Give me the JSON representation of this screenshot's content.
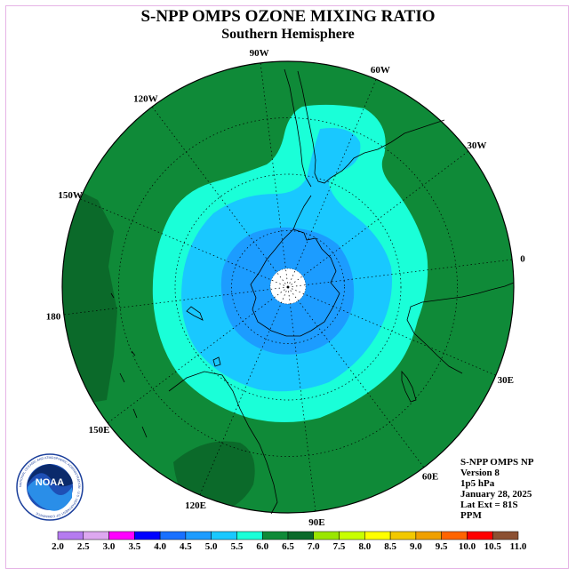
{
  "header": {
    "title": "S-NPP OMPS OZONE MIXING RATIO",
    "subtitle": "Southern Hemisphere"
  },
  "map": {
    "projection": "south polar stereographic",
    "longitude_labels": [
      "90W",
      "60W",
      "30W",
      "0",
      "30E",
      "60E",
      "90E",
      "120E",
      "150E",
      "180",
      "150W",
      "120W"
    ],
    "field_colors": {
      "outer": "#0f8a38",
      "dark": "#0b6a2a",
      "ring1": "#1affd8",
      "ring2": "#19c8ff",
      "ring3": "#1c9cff",
      "pole": "#ffffff"
    }
  },
  "info": {
    "lines": [
      "S-NPP OMPS NP",
      "Version 8",
      "1p5 hPa",
      "January 28, 2025",
      "Lat Ext = 81S",
      "PPM"
    ]
  },
  "colorbar": {
    "ticks": [
      "2.0",
      "2.5",
      "3.0",
      "3.5",
      "4.0",
      "4.5",
      "5.0",
      "5.5",
      "6.0",
      "6.5",
      "7.0",
      "7.5",
      "8.0",
      "8.5",
      "9.0",
      "9.5",
      "10.0",
      "10.5",
      "11.0"
    ],
    "colors": [
      "#b57bf0",
      "#dda8f0",
      "#ff00ff",
      "#0000ff",
      "#1970ff",
      "#1e9cff",
      "#19c8ff",
      "#1affd8",
      "#0f8a38",
      "#0b6a2a",
      "#9ae600",
      "#c8ff00",
      "#ffff00",
      "#f2c800",
      "#f0a000",
      "#ff6400",
      "#ff0000",
      "#8c5032"
    ]
  },
  "logo": {
    "text": "NOAA",
    "ring_text": "NATIONAL OCEANIC AND ATMOSPHERIC ADMINISTRATION · U.S. DEPARTMENT OF COMMERCE"
  }
}
